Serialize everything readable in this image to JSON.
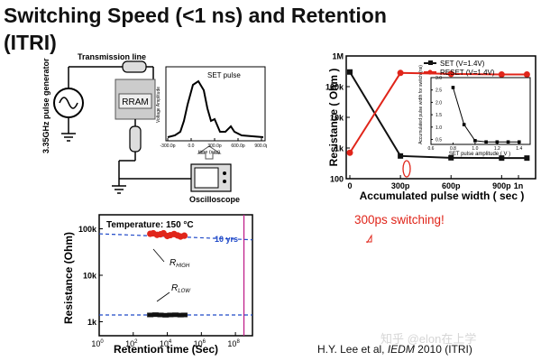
{
  "title": {
    "line1": "Switching Speed (<1 ns) and Retention",
    "line2": "(ITRI)"
  },
  "circuit": {
    "generator_label": "3.35GHz pulse generator",
    "transmission_label": "Transmission line",
    "rram_label": "RRAM",
    "scope_label": "Oscilloscope"
  },
  "pulse_inset": {
    "chart_label": "SET pulse",
    "ylabel": "Voltage Amplitude",
    "xlabel": "time (sec)",
    "x_ticks": [
      "-300.0p",
      "0.0",
      "300.0p",
      "600.0p",
      "900.0p"
    ]
  },
  "speed_chart": {
    "ylabel": "Resistance ( Ohm )",
    "xlabel": "Accumulated pulse width ( sec )",
    "y_ticks": [
      "100",
      "1k",
      "10k",
      "100k",
      "1M"
    ],
    "x_ticks": [
      "0",
      "300p",
      "600p",
      "900p",
      "1n"
    ],
    "legend": [
      "SET (V=1.4V)",
      "RESET (V=1.4V)"
    ],
    "inset": {
      "xlabel": "SET pulse amplitude ( V )",
      "ylabel": "Accumulated pulse width for switch (ns)",
      "x_ticks": [
        "0.6",
        "0.8",
        "1.0",
        "1.2",
        "1.4"
      ],
      "y_ticks": [
        "0.5",
        "1.0",
        "1.5",
        "2.0",
        "2.5",
        "3.0"
      ]
    }
  },
  "retention_chart": {
    "temp_label": "Temperature: 150 °C",
    "years_label": "10 yrs",
    "ylabel": "Resistance (Ohm)",
    "xlabel": "Retention time (Sec)",
    "y_ticks": [
      "100k",
      "10k",
      "1k"
    ],
    "x_ticks": [
      "0",
      "2",
      "4",
      "6",
      "8"
    ],
    "r_high": "R",
    "r_high_sub": "HIGH",
    "r_low": "R",
    "r_low_sub": "LOW"
  },
  "switching_note": "300ps switching!",
  "citation": {
    "authors": "H.Y. Lee et al, ",
    "venue": "IEDM",
    "rest": " 2010 (ITRI)"
  },
  "watermark": "知乎 @elon在上学",
  "colors": {
    "set_series": "#111111",
    "reset_series": "#e0251a",
    "high_state": "#e0251a",
    "low_state": "#111111",
    "year_marker": "#c0208a",
    "fit_line": "#1f49c8",
    "note": "#e0251a"
  },
  "chart_data": [
    {
      "type": "line",
      "title": "",
      "xlabel": "Accumulated pulse width ( sec )",
      "ylabel": "Resistance ( Ohm )",
      "yscale": "log",
      "x_unit": "s",
      "xlim": [
        0,
        1.08e-09
      ],
      "ylim": [
        100,
        1000000
      ],
      "legend_position": "top-right",
      "series": [
        {
          "name": "SET (V=1.4V)",
          "color": "#111111",
          "x": [
            0,
            3e-10,
            6e-10,
            9e-10,
            1.05e-09
          ],
          "y": [
            300000,
            550,
            480,
            470,
            470
          ]
        },
        {
          "name": "RESET (V=1.4V)",
          "color": "#e0251a",
          "x": [
            0,
            3e-10,
            6e-10,
            9e-10,
            1.05e-09
          ],
          "y": [
            700,
            280000,
            260000,
            250000,
            250000
          ]
        }
      ]
    },
    {
      "type": "line",
      "title": "",
      "xlabel": "SET pulse amplitude ( V )",
      "ylabel": "Accumulated pulse width for switch (ns)",
      "xlim": [
        0.6,
        1.5
      ],
      "ylim": [
        0.3,
        3.0
      ],
      "series": [
        {
          "name": "",
          "x": [
            0.8,
            0.9,
            1.0,
            1.1,
            1.2,
            1.3,
            1.4
          ],
          "y": [
            2.6,
            1.1,
            0.45,
            0.4,
            0.4,
            0.4,
            0.4
          ]
        }
      ]
    },
    {
      "type": "scatter",
      "title": "",
      "xlabel": "Retention time (Sec)",
      "ylabel": "Resistance (Ohm)",
      "xscale": "log",
      "yscale": "log",
      "xlim": [
        1,
        1000000000.0
      ],
      "ylim": [
        500,
        200000
      ],
      "series": [
        {
          "name": "R HIGH",
          "color": "#e0251a",
          "x": [
            1000,
            1500,
            2500,
            4000,
            6000,
            10000,
            15000,
            25000,
            40000,
            60000,
            100000
          ],
          "y": [
            78000,
            80000,
            74000,
            76000,
            80000,
            70000,
            73000,
            77000,
            72000,
            68000,
            71000
          ]
        },
        {
          "name": "R LOW",
          "color": "#111111",
          "x": [
            1000,
            2000,
            4000,
            8000,
            15000,
            30000,
            60000,
            100000
          ],
          "y": [
            1400,
            1420,
            1400,
            1380,
            1400,
            1410,
            1390,
            1400
          ]
        }
      ]
    }
  ]
}
